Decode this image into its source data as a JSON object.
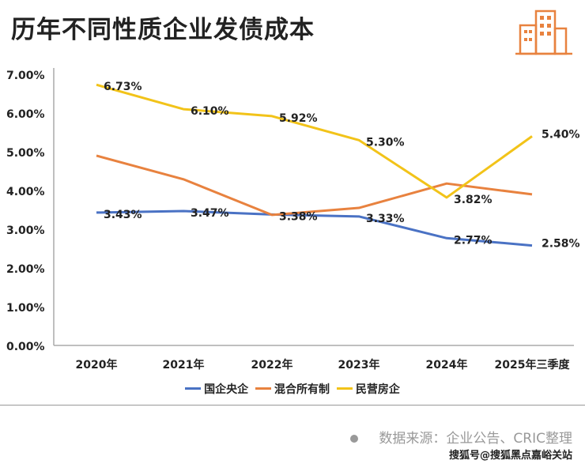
{
  "header": {
    "title": "历年不同性质企业发债成本",
    "logo_icon": "buildings-icon"
  },
  "chart_data": {
    "type": "line",
    "title": "历年不同性质企业发债成本",
    "categories": [
      "2020年",
      "2021年",
      "2022年",
      "2023年",
      "2024年",
      "2025年三季度"
    ],
    "ylim": [
      0,
      7
    ],
    "yticks": [
      "0.00%",
      "1.00%",
      "2.00%",
      "3.00%",
      "4.00%",
      "5.00%",
      "6.00%",
      "7.00%"
    ],
    "grid": false,
    "legend_position": "bottom",
    "series": [
      {
        "name": "国企央企",
        "color": "#4a72c4",
        "values": [
          3.43,
          3.47,
          3.38,
          3.33,
          2.77,
          2.58
        ],
        "labels": [
          "3.43%",
          "3.47%",
          "3.38%",
          "3.33%",
          "2.77%",
          "2.58%"
        ]
      },
      {
        "name": "混合所有制",
        "color": "#e8823f",
        "values": [
          4.9,
          4.29,
          3.37,
          3.55,
          4.18,
          3.9
        ],
        "labels": []
      },
      {
        "name": "民营房企",
        "color": "#f2c319",
        "values": [
          6.73,
          6.1,
          5.92,
          5.3,
          3.82,
          5.4
        ],
        "labels": [
          "6.73%",
          "6.10%",
          "5.92%",
          "5.30%",
          "3.82%",
          "5.40%"
        ]
      }
    ]
  },
  "footer": {
    "source": "数据来源：企业公告、CRIC整理",
    "watermark": "搜狐号@搜狐黑点嘉峪关站"
  }
}
